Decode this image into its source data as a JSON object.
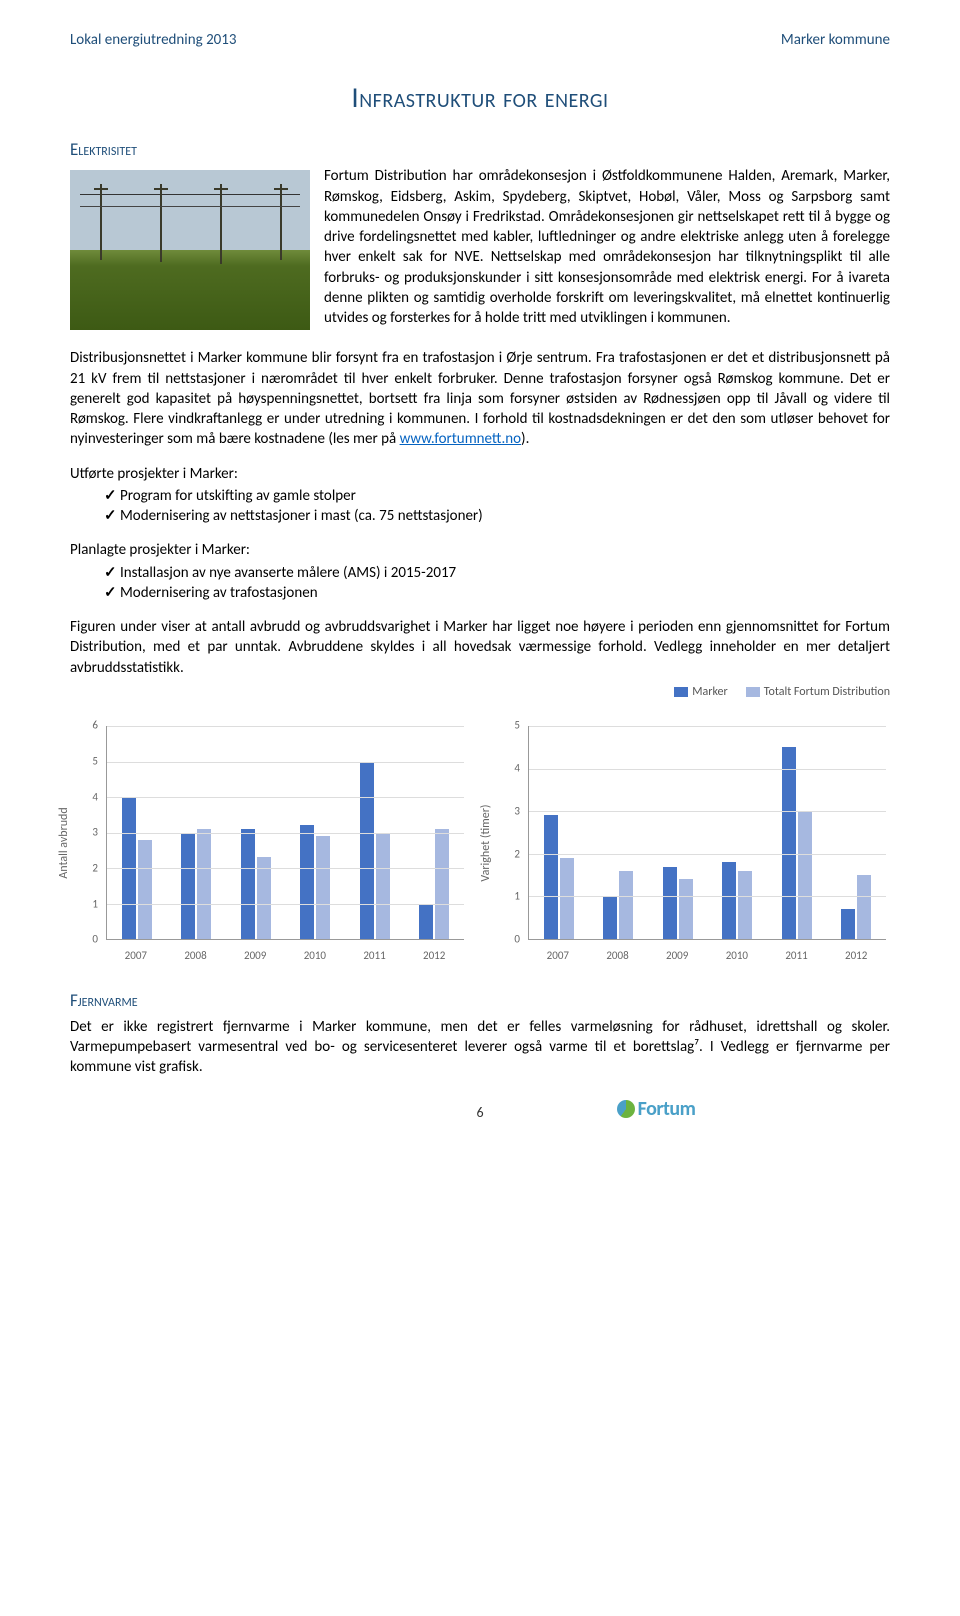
{
  "header": {
    "left": "Lokal energiutredning 2013",
    "right": "Marker kommune"
  },
  "title": "Infrastruktur for energi",
  "section_elektrisitet": "Elektrisitet",
  "para1": "Fortum Distribution har områdekonsesjon i Østfoldkommunene Halden, Aremark, Marker, Rømskog, Eidsberg, Askim, Spydeberg, Skiptvet, Hobøl, Våler, Moss og Sarpsborg samt kommunedelen Onsøy i Fredrikstad. Områdekonsesjonen gir nettselskapet rett til å bygge og drive fordelingsnettet med kabler, luftledninger og andre elektriske anlegg uten å forelegge hver enkelt sak for NVE. Nettselskap med områdekonsesjon har tilknytningsplikt til alle forbruks- og produksjonskunder i sitt konsesjonsområde med elektrisk energi. For å ivareta denne plikten og samtidig overholde forskrift om leveringskvalitet, må elnettet kontinuerlig utvides og forsterkes for å holde tritt med utviklingen i kommunen.",
  "para2_a": "Distribusjonsnettet i Marker kommune blir forsynt fra en trafostasjon i Ørje sentrum. Fra trafostasjonen er det et distribusjonsnett på 21 kV frem til nettstasjoner i nærområdet til hver enkelt forbruker. Denne trafostasjon forsyner også Rømskog kommune. Det er generelt god kapasitet på høyspenningsnettet, bortsett fra linja som forsyner østsiden av Rødnessjøen opp til Jåvall og videre til Rømskog. Flere vindkraftanlegg er under utredning i kommunen. I forhold til kostnadsdekningen er det den som utløser behovet for nyinvesteringer som må bære kostnadene (les mer på ",
  "para2_link": "www.fortumnett.no",
  "para2_b": ").",
  "ut_title": "Utførte prosjekter i Marker:",
  "ut_items": [
    "Program for utskifting av gamle stolper",
    "Modernisering av nettstasjoner i mast (ca. 75 nettstasjoner)"
  ],
  "pl_title": "Planlagte prosjekter i Marker:",
  "pl_items": [
    "Installasjon av nye avanserte målere (AMS) i 2015-2017",
    "Modernisering av trafostasjonen"
  ],
  "para3": "Figuren under viser at antall avbrudd og avbruddsvarighet i Marker har ligget noe høyere i perioden enn gjennomsnittet for Fortum Distribution, med et par unntak. Avbruddene skyldes i all hovedsak værmessige forhold. Vedlegg inneholder en mer detaljert avbruddsstatistikk.",
  "legend": {
    "series_a": "Marker",
    "series_b": "Totalt Fortum Distribution"
  },
  "colors": {
    "series_a": "#4472c4",
    "series_b": "#a6b8e0",
    "grid": "#dddddd",
    "axis": "#999999",
    "text": "#000000",
    "heading": "#1f4e79",
    "link": "#0563c1",
    "logo_blue": "#4aa0c8",
    "logo_green": "#6cb33f"
  },
  "chart_left": {
    "type": "bar",
    "ylabel": "Antall avbrudd",
    "ymax": 6,
    "ytick_step": 1,
    "categories": [
      "2007",
      "2008",
      "2009",
      "2010",
      "2011",
      "2012"
    ],
    "series_a": [
      4.0,
      3.0,
      3.1,
      3.2,
      5.0,
      1.0
    ],
    "series_b": [
      2.8,
      3.1,
      2.3,
      2.9,
      3.0,
      3.1
    ]
  },
  "chart_right": {
    "type": "bar",
    "ylabel": "Varighet (timer)",
    "ymax": 5,
    "ytick_step": 1,
    "categories": [
      "2007",
      "2008",
      "2009",
      "2010",
      "2011",
      "2012"
    ],
    "series_a": [
      2.9,
      1.0,
      1.7,
      1.8,
      4.5,
      0.7
    ],
    "series_b": [
      1.9,
      1.6,
      1.4,
      1.6,
      3.0,
      1.5
    ]
  },
  "section_fjernvarme": "Fjernvarme",
  "para4": "Det er ikke registrert fjernvarme i Marker kommune, men det er felles varmeløsning for rådhuset, idrettshall og skoler. Varmepumpebasert varmesentral ved bo- og servicesenteret leverer også varme til et borettslag⁷. I Vedlegg er fjernvarme per kommune vist grafisk.",
  "page_no": "6",
  "logo_text": "Fortum"
}
